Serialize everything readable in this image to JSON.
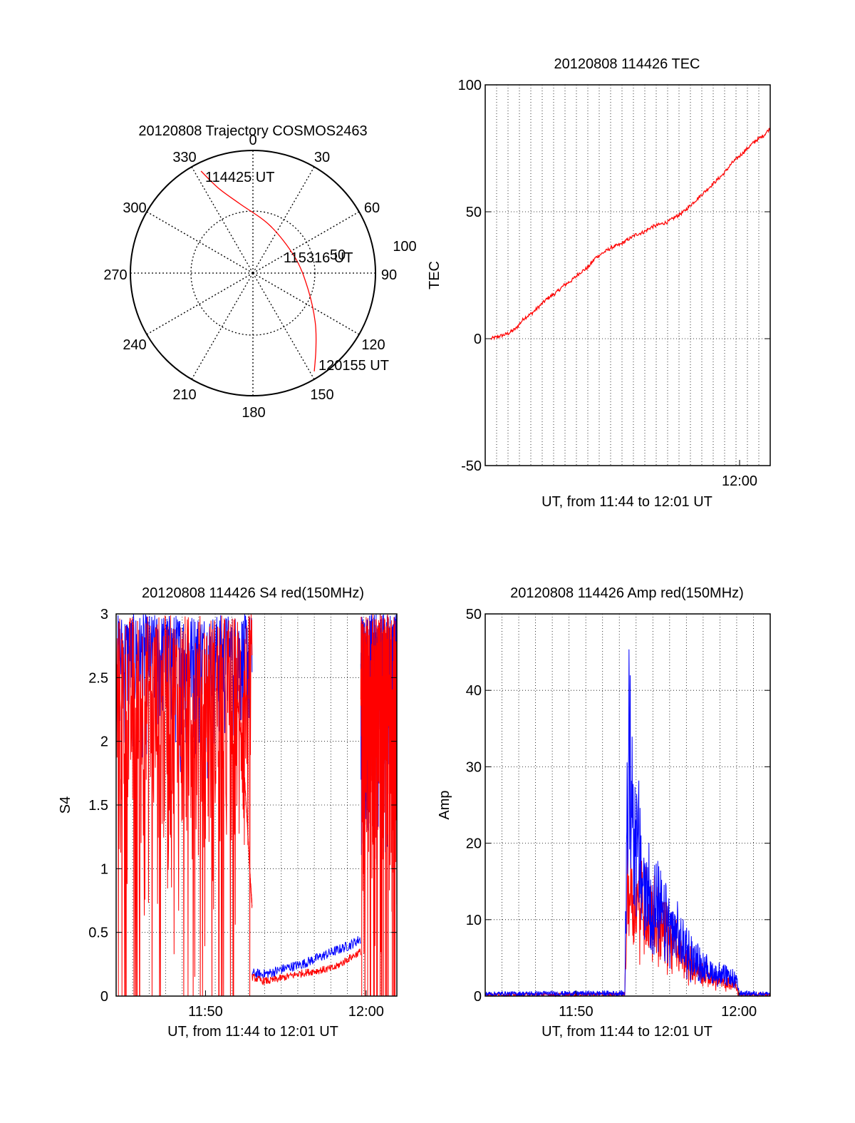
{
  "colors": {
    "red": "#ff0000",
    "blue": "#0000ff",
    "black": "#000000"
  },
  "chart_data": [
    {
      "type": "polar",
      "title": "20120808 Trajectory COSMOS2463",
      "azimuth_labels": [
        "0",
        "30",
        "60",
        "90",
        "120",
        "150",
        "180",
        "210",
        "240",
        "270",
        "300",
        "330"
      ],
      "ring_labels": [
        "50",
        "100"
      ],
      "rlim": [
        0,
        90
      ],
      "series": [
        {
          "color": "red",
          "points": [
            {
              "az": 333,
              "zen": 84
            },
            {
              "az": 338,
              "zen": 67
            },
            {
              "az": 349,
              "zen": 52
            },
            {
              "az": 20,
              "zen": 37
            },
            {
              "az": 70,
              "zen": 33
            },
            {
              "az": 106,
              "zen": 42
            },
            {
              "az": 128,
              "zen": 58
            },
            {
              "az": 140,
              "zen": 72
            },
            {
              "az": 148,
              "zen": 85
            }
          ]
        }
      ],
      "annotations": [
        "114425 UT",
        "115316 UT",
        "120155 UT"
      ]
    },
    {
      "type": "line",
      "title": "20120808 114426 TEC",
      "xlabel": "UT, from 11:44 to 12:01 UT",
      "ylabel": "TEC",
      "ylim": [
        -50,
        100
      ],
      "yticks": [
        "-50",
        "0",
        "50",
        "100"
      ],
      "xlim": [
        "11:44:26",
        "12:01:55"
      ],
      "xticks": [
        "12:00"
      ],
      "grid": true,
      "series": [
        {
          "color": "red",
          "x": [
            "11:44:26",
            "11:45:00",
            "11:45:30",
            "11:46:00",
            "11:46:30",
            "11:47:00",
            "11:47:30",
            "11:48:00",
            "11:48:30",
            "11:49:00",
            "11:49:30",
            "11:50:00",
            "11:50:30",
            "11:51:00",
            "11:51:30",
            "11:52:00",
            "11:52:30",
            "11:53:00",
            "11:53:30",
            "11:54:00",
            "11:54:30",
            "11:55:00",
            "11:55:30",
            "11:56:00",
            "11:56:30",
            "11:57:00",
            "11:57:30",
            "11:58:00",
            "11:58:30",
            "11:59:00",
            "11:59:30",
            "12:00:00",
            "12:00:30",
            "12:01:00",
            "12:01:30",
            "12:01:55"
          ],
          "y": [
            0,
            1,
            2,
            4,
            8,
            10,
            13,
            16,
            18,
            21,
            23,
            26,
            28,
            32,
            34,
            36,
            37,
            39,
            41,
            42,
            44,
            45,
            46,
            48,
            50,
            53,
            56,
            59,
            62,
            65,
            69,
            72,
            75,
            78,
            80,
            83
          ]
        }
      ]
    },
    {
      "type": "line",
      "title": "20120808 114426 S4 red(150MHz)",
      "xlabel": "UT, from 11:44 to 12:01 UT",
      "ylabel": "S4",
      "ylim": [
        0,
        3
      ],
      "yticks": [
        "0",
        "0.5",
        "1",
        "1.5",
        "2",
        "2.5",
        "3"
      ],
      "xlim": [
        "11:44:26",
        "12:01:55"
      ],
      "xticks": [
        "11:50",
        "12:00"
      ],
      "grid": true,
      "series": [
        {
          "color": "red",
          "segments": [
            {
              "x": [
                "11:44:26",
                "11:52:54"
              ],
              "y": [
                0,
                3
              ],
              "kind": "noise"
            },
            {
              "x": [
                "11:52:00",
                "11:52:20",
                "11:52:35",
                "11:52:45",
                "11:52:54"
              ],
              "y": [
                2.3,
                1.9,
                1.4,
                1.0,
                0.7
              ],
              "kind": "line"
            },
            {
              "x": [
                "11:52:54",
                "11:53:30",
                "11:54:00",
                "11:55:00",
                "11:56:00",
                "11:57:00",
                "11:58:00",
                "11:59:00",
                "11:59:40"
              ],
              "y": [
                0.15,
                0.12,
                0.12,
                0.15,
                0.18,
                0.2,
                0.22,
                0.3,
                0.35
              ],
              "kind": "line"
            },
            {
              "x": [
                "11:59:40",
                "12:01:55"
              ],
              "y": [
                0,
                3
              ],
              "kind": "noise"
            }
          ]
        },
        {
          "color": "blue",
          "segments": [
            {
              "x": [
                "11:44:26",
                "11:52:54"
              ],
              "y": [
                1.6,
                3
              ],
              "kind": "noise"
            },
            {
              "x": [
                "11:52:54",
                "11:53:30",
                "11:54:00",
                "11:55:00",
                "11:56:00",
                "11:57:00",
                "11:58:00",
                "11:59:00",
                "11:59:40"
              ],
              "y": [
                0.18,
                0.17,
                0.18,
                0.22,
                0.25,
                0.3,
                0.35,
                0.4,
                0.45
              ],
              "kind": "line"
            },
            {
              "x": [
                "11:59:40",
                "12:01:55"
              ],
              "y": [
                0.8,
                3
              ],
              "kind": "noise"
            }
          ]
        }
      ]
    },
    {
      "type": "line",
      "title": "20120808 114426 Amp red(150MHz)",
      "xlabel": "UT, from 11:44 to 12:01 UT",
      "ylabel": "Amp",
      "ylim": [
        0,
        50
      ],
      "yticks": [
        "0",
        "10",
        "20",
        "30",
        "40",
        "50"
      ],
      "xlim": [
        "11:44:26",
        "12:01:55"
      ],
      "xticks": [
        "11:50",
        "12:00"
      ],
      "grid": true,
      "series": [
        {
          "color": "red",
          "x": [
            "11:44:26",
            "11:53:00",
            "11:53:10",
            "11:54:00",
            "11:55:00",
            "11:56:00",
            "11:57:00",
            "11:58:00",
            "11:59:00",
            "11:59:50",
            "12:00:00",
            "12:01:55"
          ],
          "y": [
            0.3,
            0.4,
            22,
            18,
            14,
            10,
            6,
            4,
            2.5,
            2,
            0.4,
            0.3
          ]
        },
        {
          "color": "blue",
          "x": [
            "11:44:26",
            "11:53:00",
            "11:53:10",
            "11:54:00",
            "11:55:00",
            "11:56:00",
            "11:57:00",
            "11:58:00",
            "11:59:00",
            "11:59:50",
            "12:00:00",
            "12:01:55"
          ],
          "y": [
            0.5,
            0.6,
            48,
            22,
            16,
            12,
            8,
            5,
            4,
            3,
            0.6,
            0.5
          ]
        }
      ]
    }
  ]
}
